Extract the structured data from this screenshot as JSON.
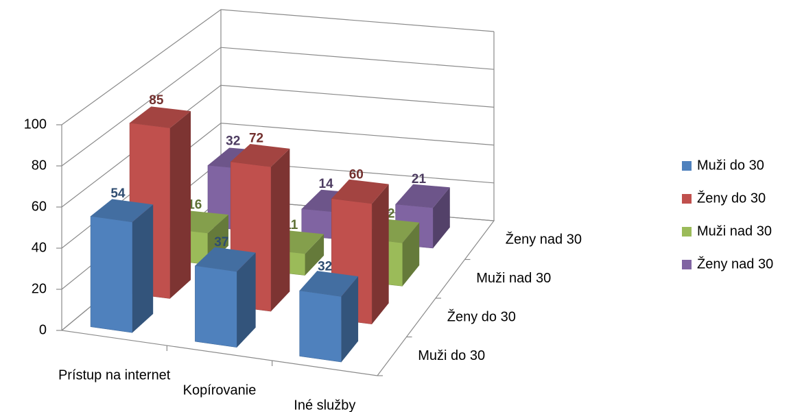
{
  "chart_data": {
    "type": "bar3d",
    "categories": [
      "Prístup na internet",
      "Kopírovanie",
      "Iné služby"
    ],
    "series": [
      {
        "name": "Muži do 30",
        "color": "#4f81bd",
        "values": [
          54,
          37,
          32
        ]
      },
      {
        "name": "Ženy do 30",
        "color": "#c0504d",
        "values": [
          85,
          72,
          60
        ]
      },
      {
        "name": "Muži nad 30",
        "color": "#9bbb59",
        "values": [
          16,
          11,
          22
        ]
      },
      {
        "name": "Ženy nad 30",
        "color": "#8064a2",
        "values": [
          32,
          14,
          21
        ]
      }
    ],
    "ylim": [
      0,
      100
    ],
    "yticks": [
      0,
      20,
      40,
      60,
      80,
      100
    ],
    "grid": true,
    "legend": "right"
  }
}
